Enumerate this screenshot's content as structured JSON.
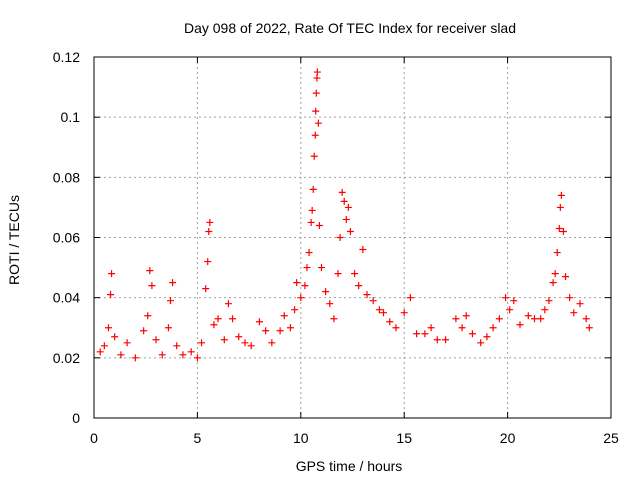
{
  "chart_data": {
    "type": "scatter",
    "title": "Day 098 of 2022, Rate Of TEC Index for receiver slad",
    "xlabel": "GPS time / hours",
    "ylabel": "ROTI / TECUs",
    "xlim": [
      0,
      25
    ],
    "ylim": [
      0,
      0.12
    ],
    "xticks": [
      0,
      5,
      10,
      15,
      20,
      25
    ],
    "yticks": [
      0,
      0.02,
      0.04,
      0.06,
      0.08,
      0.1,
      0.12
    ],
    "xtick_labels": [
      "0",
      "5",
      "10",
      "15",
      "20",
      "25"
    ],
    "ytick_labels": [
      "0",
      "0.02",
      "0.04",
      "0.06",
      "0.08",
      "0.1",
      "0.12"
    ],
    "grid": true,
    "legend": "none",
    "marker": "plus",
    "series": [
      {
        "name": "ROTI",
        "color": "#ff0000",
        "note": "dense band of points spanning 0 to 24 h; representative sample of visible points",
        "points": [
          [
            0.3,
            0.022
          ],
          [
            0.5,
            0.024
          ],
          [
            0.7,
            0.03
          ],
          [
            0.8,
            0.041
          ],
          [
            0.85,
            0.048
          ],
          [
            1.0,
            0.027
          ],
          [
            1.3,
            0.021
          ],
          [
            1.6,
            0.025
          ],
          [
            2.0,
            0.02
          ],
          [
            2.4,
            0.029
          ],
          [
            2.6,
            0.034
          ],
          [
            2.7,
            0.049
          ],
          [
            2.8,
            0.044
          ],
          [
            3.0,
            0.026
          ],
          [
            3.3,
            0.021
          ],
          [
            3.6,
            0.03
          ],
          [
            3.7,
            0.039
          ],
          [
            3.8,
            0.045
          ],
          [
            4.0,
            0.024
          ],
          [
            4.3,
            0.021
          ],
          [
            4.7,
            0.022
          ],
          [
            5.0,
            0.02
          ],
          [
            5.2,
            0.025
          ],
          [
            5.4,
            0.043
          ],
          [
            5.5,
            0.052
          ],
          [
            5.55,
            0.062
          ],
          [
            5.6,
            0.065
          ],
          [
            5.8,
            0.031
          ],
          [
            6.0,
            0.033
          ],
          [
            6.3,
            0.026
          ],
          [
            6.5,
            0.038
          ],
          [
            6.7,
            0.033
          ],
          [
            7.0,
            0.027
          ],
          [
            7.3,
            0.025
          ],
          [
            7.6,
            0.024
          ],
          [
            8.0,
            0.032
          ],
          [
            8.3,
            0.029
          ],
          [
            8.6,
            0.025
          ],
          [
            9.0,
            0.029
          ],
          [
            9.2,
            0.034
          ],
          [
            9.5,
            0.03
          ],
          [
            9.7,
            0.036
          ],
          [
            9.8,
            0.045
          ],
          [
            10.0,
            0.04
          ],
          [
            10.2,
            0.044
          ],
          [
            10.3,
            0.05
          ],
          [
            10.4,
            0.055
          ],
          [
            10.5,
            0.065
          ],
          [
            10.55,
            0.069
          ],
          [
            10.6,
            0.076
          ],
          [
            10.65,
            0.087
          ],
          [
            10.7,
            0.094
          ],
          [
            10.72,
            0.102
          ],
          [
            10.75,
            0.108
          ],
          [
            10.78,
            0.113
          ],
          [
            10.8,
            0.115
          ],
          [
            10.85,
            0.098
          ],
          [
            10.9,
            0.064
          ],
          [
            11.0,
            0.05
          ],
          [
            11.2,
            0.042
          ],
          [
            11.4,
            0.038
          ],
          [
            11.6,
            0.033
          ],
          [
            11.8,
            0.048
          ],
          [
            11.9,
            0.06
          ],
          [
            12.0,
            0.075
          ],
          [
            12.1,
            0.072
          ],
          [
            12.2,
            0.066
          ],
          [
            12.3,
            0.07
          ],
          [
            12.4,
            0.062
          ],
          [
            12.6,
            0.048
          ],
          [
            12.8,
            0.044
          ],
          [
            13.0,
            0.056
          ],
          [
            13.2,
            0.041
          ],
          [
            13.5,
            0.039
          ],
          [
            13.8,
            0.036
          ],
          [
            14.0,
            0.035
          ],
          [
            14.3,
            0.032
          ],
          [
            14.6,
            0.03
          ],
          [
            15.0,
            0.035
          ],
          [
            15.3,
            0.04
          ],
          [
            15.6,
            0.028
          ],
          [
            16.0,
            0.028
          ],
          [
            16.3,
            0.03
          ],
          [
            16.6,
            0.026
          ],
          [
            17.0,
            0.026
          ],
          [
            17.5,
            0.033
          ],
          [
            17.8,
            0.03
          ],
          [
            18.0,
            0.034
          ],
          [
            18.3,
            0.028
          ],
          [
            18.7,
            0.025
          ],
          [
            19.0,
            0.027
          ],
          [
            19.3,
            0.03
          ],
          [
            19.6,
            0.033
          ],
          [
            19.9,
            0.04
          ],
          [
            20.1,
            0.036
          ],
          [
            20.3,
            0.039
          ],
          [
            20.6,
            0.031
          ],
          [
            21.0,
            0.034
          ],
          [
            21.3,
            0.033
          ],
          [
            21.6,
            0.033
          ],
          [
            21.8,
            0.036
          ],
          [
            22.0,
            0.039
          ],
          [
            22.2,
            0.045
          ],
          [
            22.3,
            0.048
          ],
          [
            22.4,
            0.055
          ],
          [
            22.5,
            0.063
          ],
          [
            22.55,
            0.07
          ],
          [
            22.6,
            0.074
          ],
          [
            22.7,
            0.062
          ],
          [
            22.8,
            0.047
          ],
          [
            23.0,
            0.04
          ],
          [
            23.2,
            0.035
          ],
          [
            23.5,
            0.038
          ],
          [
            23.8,
            0.033
          ],
          [
            23.95,
            0.03
          ]
        ]
      }
    ]
  }
}
